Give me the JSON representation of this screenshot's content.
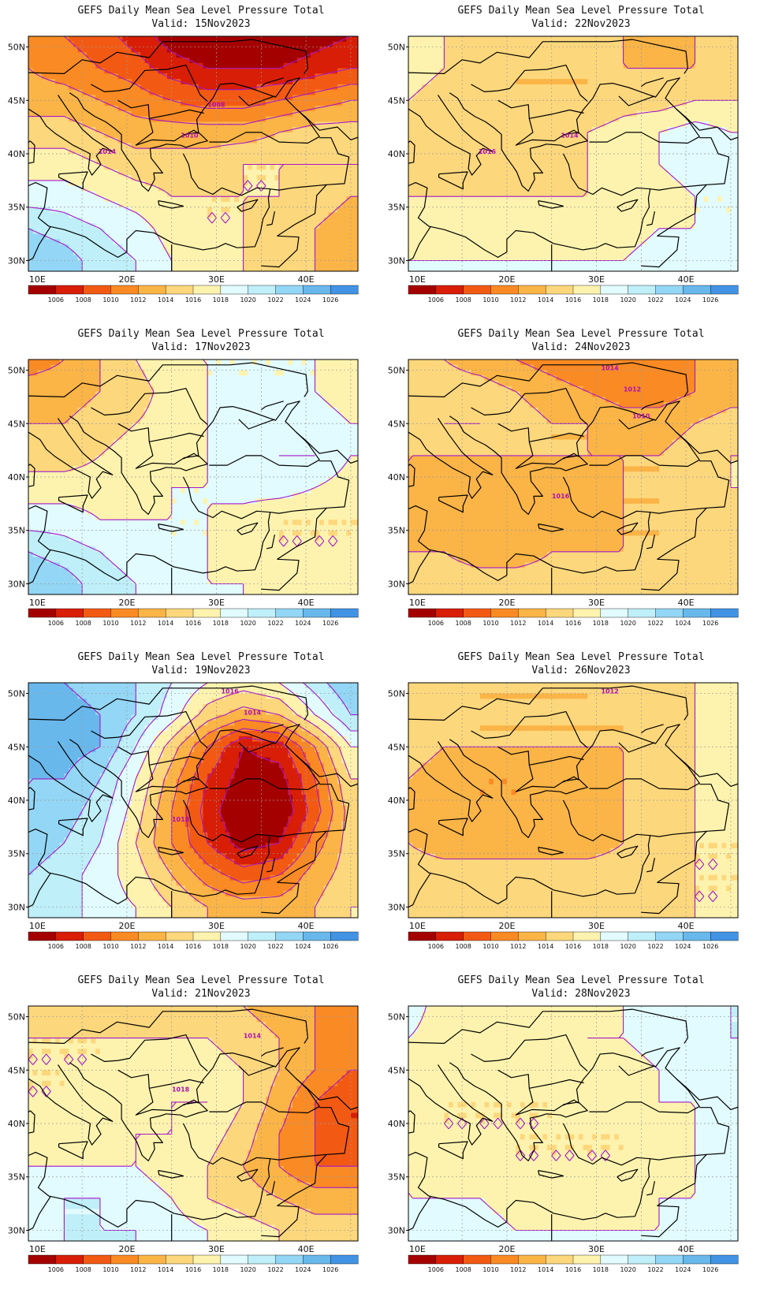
{
  "colorbar": {
    "colors": [
      "#a50000",
      "#d81e06",
      "#f25a14",
      "#f98a24",
      "#fbb446",
      "#fdd77c",
      "#fef3ae",
      "#e1fbff",
      "#bfeff9",
      "#93d6f5",
      "#68b8ec",
      "#4293e4",
      "#2b6fd6"
    ],
    "labels": [
      "1006",
      "1008",
      "1010",
      "1012",
      "1014",
      "1016",
      "1018",
      "1020",
      "1022",
      "1024",
      "1026"
    ]
  },
  "axes": {
    "lon_labels": [
      "10E",
      "20E",
      "30E",
      "40E"
    ],
    "lat_labels": [
      "50N",
      "45N",
      "40N",
      "35N",
      "30N"
    ]
  },
  "panels": [
    {
      "title": "GEFS Daily Mean Sea Level Pressure Total",
      "valid": "Valid: 15Nov2023",
      "contour_labels": [
        "1008",
        "1010",
        "1014"
      ],
      "pressure": {
        "type": "grid",
        "x_lon": [
          9,
          13,
          17,
          21,
          25,
          29,
          33,
          37,
          41,
          45
        ],
        "y_lat": [
          51,
          48,
          45,
          42,
          39,
          36,
          33,
          30,
          29
        ],
        "values": [
          [
            1011,
            1010,
            1009,
            1007,
            1005,
            1004,
            1004,
            1004,
            1005,
            1006
          ],
          [
            1012,
            1011,
            1010,
            1009,
            1007,
            1006,
            1006,
            1006,
            1007,
            1008
          ],
          [
            1013,
            1013,
            1012,
            1011,
            1010,
            1009,
            1009,
            1010,
            1011,
            1012
          ],
          [
            1015,
            1015,
            1014,
            1013,
            1013,
            1013,
            1013,
            1014,
            1015,
            1015
          ],
          [
            1017,
            1017,
            1016,
            1015,
            1015,
            1015,
            1016,
            1016,
            1016,
            1016
          ],
          [
            1019,
            1019,
            1018,
            1017,
            1016,
            1016,
            1016,
            1016,
            1015,
            1014
          ],
          [
            1022,
            1021,
            1020,
            1019,
            1017,
            1016,
            1016,
            1015,
            1014,
            1013
          ],
          [
            1024,
            1023,
            1021,
            1020,
            1018,
            1017,
            1016,
            1015,
            1014,
            1013
          ],
          [
            1024,
            1023,
            1021,
            1020,
            1018,
            1017,
            1016,
            1015,
            1014,
            1013
          ]
        ]
      }
    },
    {
      "title": "GEFS Daily Mean Sea Level Pressure Total",
      "valid": "Valid: 22Nov2023",
      "contour_labels": [
        "1014",
        "1016"
      ],
      "pressure": {
        "type": "grid",
        "x_lon": [
          9,
          13,
          17,
          21,
          25,
          29,
          33,
          37,
          41,
          45
        ],
        "y_lat": [
          51,
          48,
          45,
          42,
          39,
          36,
          33,
          30,
          29
        ],
        "values": [
          [
            1018,
            1016,
            1015,
            1015,
            1015,
            1015,
            1014,
            1013,
            1014,
            1014
          ],
          [
            1017,
            1016,
            1015,
            1014,
            1014,
            1014,
            1014,
            1014,
            1014,
            1015
          ],
          [
            1016,
            1015,
            1015,
            1014,
            1014,
            1014,
            1015,
            1015,
            1016,
            1016
          ],
          [
            1015,
            1015,
            1015,
            1015,
            1015,
            1016,
            1017,
            1018,
            1019,
            1018
          ],
          [
            1015,
            1015,
            1015,
            1015,
            1015,
            1016,
            1017,
            1018,
            1019,
            1018
          ],
          [
            1016,
            1016,
            1016,
            1016,
            1016,
            1016,
            1017,
            1017,
            1018,
            1018
          ],
          [
            1017,
            1017,
            1017,
            1017,
            1017,
            1017,
            1017,
            1018,
            1018,
            1018
          ],
          [
            1018,
            1018,
            1018,
            1018,
            1018,
            1018,
            1018,
            1019,
            1019,
            1019
          ],
          [
            1018,
            1018,
            1018,
            1018,
            1018,
            1018,
            1018,
            1019,
            1019,
            1019
          ]
        ]
      }
    },
    {
      "title": "GEFS Daily Mean Sea Level Pressure Total",
      "valid": "Valid: 17Nov2023",
      "contour_labels": [],
      "pressure": {
        "type": "grid",
        "x_lon": [
          9,
          13,
          17,
          21,
          25,
          29,
          33,
          37,
          41,
          45
        ],
        "y_lat": [
          51,
          48,
          45,
          42,
          39,
          36,
          33,
          30,
          29
        ],
        "values": [
          [
            1011,
            1012,
            1014,
            1016,
            1018,
            1018,
            1018,
            1018,
            1018,
            1017
          ],
          [
            1013,
            1013,
            1014,
            1015,
            1017,
            1018,
            1018,
            1018,
            1018,
            1017
          ],
          [
            1014,
            1014,
            1015,
            1016,
            1017,
            1018,
            1019,
            1019,
            1019,
            1018
          ],
          [
            1015,
            1015,
            1016,
            1017,
            1017,
            1018,
            1019,
            1020,
            1020,
            1018
          ],
          [
            1017,
            1017,
            1017,
            1017,
            1018,
            1018,
            1019,
            1019,
            1018,
            1017
          ],
          [
            1019,
            1019,
            1018,
            1018,
            1018,
            1018,
            1017,
            1016,
            1016,
            1016
          ],
          [
            1022,
            1021,
            1020,
            1019,
            1018,
            1018,
            1017,
            1016,
            1016,
            1016
          ],
          [
            1024,
            1023,
            1021,
            1020,
            1019,
            1018,
            1018,
            1017,
            1017,
            1017
          ],
          [
            1024,
            1023,
            1021,
            1020,
            1019,
            1018,
            1018,
            1017,
            1017,
            1017
          ]
        ]
      }
    },
    {
      "title": "GEFS Daily Mean Sea Level Pressure Total",
      "valid": "Valid: 24Nov2023",
      "contour_labels": [
        "1010",
        "1016",
        "1014",
        "1012"
      ],
      "pressure": {
        "type": "grid",
        "x_lon": [
          9,
          13,
          17,
          21,
          25,
          29,
          33,
          37,
          41,
          45
        ],
        "y_lat": [
          51,
          48,
          45,
          42,
          39,
          36,
          33,
          30,
          29
        ],
        "values": [
          [
            1015,
            1014,
            1013,
            1012,
            1011,
            1010,
            1010,
            1011,
            1012,
            1013
          ],
          [
            1016,
            1015,
            1015,
            1014,
            1013,
            1012,
            1011,
            1011,
            1012,
            1013
          ],
          [
            1015,
            1016,
            1016,
            1015,
            1014,
            1014,
            1013,
            1013,
            1014,
            1015
          ],
          [
            1014,
            1014,
            1014,
            1014,
            1014,
            1014,
            1014,
            1014,
            1015,
            1016
          ],
          [
            1014,
            1013,
            1013,
            1013,
            1013,
            1013,
            1014,
            1014,
            1015,
            1016
          ],
          [
            1013,
            1012,
            1012,
            1012,
            1013,
            1013,
            1014,
            1014,
            1015,
            1015
          ],
          [
            1014,
            1014,
            1013,
            1013,
            1014,
            1014,
            1014,
            1014,
            1014,
            1014
          ],
          [
            1015,
            1015,
            1015,
            1015,
            1015,
            1015,
            1015,
            1015,
            1015,
            1015
          ],
          [
            1015,
            1015,
            1015,
            1015,
            1015,
            1015,
            1015,
            1015,
            1015,
            1015
          ]
        ]
      }
    },
    {
      "title": "GEFS Daily Mean Sea Level Pressure Total",
      "valid": "Valid: 19Nov2023",
      "contour_labels": [
        "1018",
        "1016",
        "1014"
      ],
      "pressure": {
        "type": "grid",
        "x_lon": [
          9,
          13,
          17,
          21,
          25,
          29,
          33,
          37,
          41,
          45
        ],
        "y_lat": [
          51,
          48,
          45,
          42,
          39,
          36,
          33,
          30,
          29
        ],
        "values": [
          [
            1024,
            1024,
            1023,
            1022,
            1020,
            1018,
            1017,
            1018,
            1021,
            1024
          ],
          [
            1025,
            1025,
            1024,
            1022,
            1019,
            1015,
            1013,
            1014,
            1018,
            1022
          ],
          [
            1025,
            1025,
            1024,
            1020,
            1015,
            1010,
            1006,
            1007,
            1012,
            1018
          ],
          [
            1024,
            1024,
            1022,
            1018,
            1013,
            1008,
            1005,
            1005,
            1010,
            1016
          ],
          [
            1024,
            1023,
            1021,
            1017,
            1012,
            1007,
            1004,
            1004,
            1009,
            1015
          ],
          [
            1023,
            1022,
            1020,
            1016,
            1012,
            1008,
            1005,
            1006,
            1011,
            1015
          ],
          [
            1022,
            1021,
            1019,
            1017,
            1014,
            1011,
            1009,
            1010,
            1013,
            1015
          ],
          [
            1021,
            1021,
            1019,
            1018,
            1016,
            1014,
            1013,
            1013,
            1014,
            1016
          ],
          [
            1021,
            1021,
            1019,
            1018,
            1016,
            1014,
            1013,
            1013,
            1014,
            1016
          ]
        ]
      }
    },
    {
      "title": "GEFS Daily Mean Sea Level Pressure Total",
      "valid": "Valid: 26Nov2023",
      "contour_labels": [
        "1012"
      ],
      "pressure": {
        "type": "grid",
        "x_lon": [
          9,
          13,
          17,
          21,
          25,
          29,
          33,
          37,
          41,
          45
        ],
        "y_lat": [
          51,
          48,
          45,
          42,
          39,
          36,
          33,
          30,
          29
        ],
        "values": [
          [
            1015,
            1015,
            1014,
            1014,
            1014,
            1014,
            1015,
            1015,
            1016,
            1017
          ],
          [
            1015,
            1015,
            1014,
            1014,
            1014,
            1014,
            1014,
            1015,
            1016,
            1017
          ],
          [
            1015,
            1014,
            1014,
            1014,
            1014,
            1014,
            1014,
            1015,
            1016,
            1017
          ],
          [
            1014,
            1013,
            1012,
            1012,
            1013,
            1013,
            1014,
            1015,
            1016,
            1017
          ],
          [
            1013,
            1012,
            1012,
            1012,
            1012,
            1013,
            1014,
            1015,
            1016,
            1017
          ],
          [
            1014,
            1013,
            1013,
            1013,
            1013,
            1013,
            1014,
            1015,
            1016,
            1016
          ],
          [
            1015,
            1015,
            1015,
            1015,
            1015,
            1015,
            1015,
            1015,
            1016,
            1016
          ],
          [
            1015,
            1015,
            1015,
            1015,
            1015,
            1015,
            1015,
            1015,
            1016,
            1016
          ],
          [
            1015,
            1015,
            1015,
            1015,
            1015,
            1015,
            1015,
            1015,
            1016,
            1016
          ]
        ]
      }
    },
    {
      "title": "GEFS Daily Mean Sea Level Pressure Total",
      "valid": "Valid: 21Nov2023",
      "contour_labels": [
        "1014",
        "1018"
      ],
      "pressure": {
        "type": "grid",
        "x_lon": [
          9,
          13,
          17,
          21,
          25,
          29,
          33,
          37,
          41,
          45
        ],
        "y_lat": [
          51,
          48,
          45,
          42,
          39,
          36,
          33,
          30,
          29
        ],
        "values": [
          [
            1015,
            1015,
            1015,
            1014,
            1014,
            1014,
            1014,
            1013,
            1012,
            1011
          ],
          [
            1016,
            1016,
            1016,
            1016,
            1016,
            1016,
            1015,
            1014,
            1012,
            1011
          ],
          [
            1016,
            1016,
            1016,
            1017,
            1017,
            1017,
            1016,
            1014,
            1012,
            1010
          ],
          [
            1016,
            1016,
            1017,
            1017,
            1018,
            1018,
            1016,
            1013,
            1010,
            1008
          ],
          [
            1017,
            1017,
            1017,
            1018,
            1018,
            1017,
            1015,
            1012,
            1010,
            1008
          ],
          [
            1018,
            1018,
            1018,
            1018,
            1017,
            1016,
            1014,
            1012,
            1010,
            1010
          ],
          [
            1019,
            1020,
            1020,
            1019,
            1018,
            1016,
            1015,
            1014,
            1013,
            1013
          ],
          [
            1019,
            1020,
            1020,
            1020,
            1019,
            1018,
            1017,
            1016,
            1015,
            1015
          ],
          [
            1019,
            1020,
            1020,
            1020,
            1019,
            1018,
            1017,
            1016,
            1015,
            1015
          ]
        ]
      }
    },
    {
      "title": "GEFS Daily Mean Sea Level Pressure Total",
      "valid": "Valid: 28Nov2023",
      "contour_labels": [],
      "pressure": {
        "type": "grid",
        "x_lon": [
          9,
          13,
          17,
          21,
          25,
          29,
          33,
          37,
          41,
          45
        ],
        "y_lat": [
          51,
          48,
          45,
          42,
          39,
          36,
          33,
          30,
          29
        ],
        "values": [
          [
            1019,
            1017,
            1017,
            1017,
            1017,
            1017,
            1018,
            1018,
            1019,
            1020
          ],
          [
            1018,
            1017,
            1017,
            1017,
            1017,
            1018,
            1018,
            1019,
            1019,
            1020
          ],
          [
            1017,
            1017,
            1017,
            1017,
            1017,
            1017,
            1017,
            1018,
            1019,
            1019
          ],
          [
            1017,
            1016,
            1016,
            1016,
            1016,
            1017,
            1017,
            1018,
            1018,
            1019
          ],
          [
            1017,
            1016,
            1016,
            1016,
            1016,
            1016,
            1016,
            1017,
            1018,
            1019
          ],
          [
            1018,
            1017,
            1017,
            1016,
            1016,
            1016,
            1016,
            1017,
            1018,
            1019
          ],
          [
            1018,
            1018,
            1018,
            1017,
            1017,
            1017,
            1017,
            1018,
            1018,
            1019
          ],
          [
            1019,
            1019,
            1019,
            1018,
            1018,
            1018,
            1018,
            1018,
            1019,
            1019
          ],
          [
            1019,
            1019,
            1019,
            1018,
            1018,
            1018,
            1018,
            1018,
            1019,
            1019
          ]
        ]
      }
    }
  ]
}
